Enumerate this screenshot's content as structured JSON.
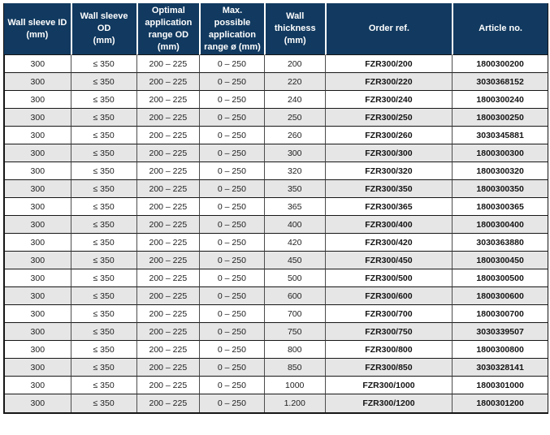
{
  "colors": {
    "header_bg": "#123a60",
    "header_text": "#ffffff",
    "row_bg": "#ffffff",
    "row_alt_bg": "#e6e6e6",
    "cell_text": "#1d1d1d",
    "horizontal_border": "#161616",
    "vertical_border": "#4d4d4d"
  },
  "table": {
    "columns": [
      {
        "id": "wall-sleeve-id",
        "label": "Wall sleeve ID\n(mm)"
      },
      {
        "id": "wall-sleeve-od",
        "label": "Wall sleeve OD\n(mm)"
      },
      {
        "id": "optimal-range-od",
        "label": "Optimal\napplication\nrange OD\n(mm)"
      },
      {
        "id": "max-range",
        "label": "Max. possible\napplication\nrange ø (mm)"
      },
      {
        "id": "wall-thickness",
        "label": "Wall thickness\n(mm)"
      },
      {
        "id": "order-ref",
        "label": "Order ref."
      },
      {
        "id": "article-no",
        "label": "Article no."
      }
    ],
    "column_widths_pct": [
      12.2,
      12.1,
      11.6,
      11.9,
      11.2,
      23.4,
      17.6
    ],
    "rows": [
      [
        "300",
        "≤ 350",
        "200 – 225",
        "0 – 250",
        "200",
        "FZR300/200",
        "1800300200"
      ],
      [
        "300",
        "≤ 350",
        "200 – 225",
        "0 – 250",
        "220",
        "FZR300/220",
        "3030368152"
      ],
      [
        "300",
        "≤ 350",
        "200 – 225",
        "0 – 250",
        "240",
        "FZR300/240",
        "1800300240"
      ],
      [
        "300",
        "≤ 350",
        "200 – 225",
        "0 – 250",
        "250",
        "FZR300/250",
        "1800300250"
      ],
      [
        "300",
        "≤ 350",
        "200 – 225",
        "0 – 250",
        "260",
        "FZR300/260",
        "3030345881"
      ],
      [
        "300",
        "≤ 350",
        "200 – 225",
        "0 – 250",
        "300",
        "FZR300/300",
        "1800300300"
      ],
      [
        "300",
        "≤ 350",
        "200 – 225",
        "0 – 250",
        "320",
        "FZR300/320",
        "1800300320"
      ],
      [
        "300",
        "≤ 350",
        "200 – 225",
        "0 – 250",
        "350",
        "FZR300/350",
        "1800300350"
      ],
      [
        "300",
        "≤ 350",
        "200 – 225",
        "0 – 250",
        "365",
        "FZR300/365",
        "1800300365"
      ],
      [
        "300",
        "≤ 350",
        "200 – 225",
        "0 – 250",
        "400",
        "FZR300/400",
        "1800300400"
      ],
      [
        "300",
        "≤ 350",
        "200 – 225",
        "0 – 250",
        "420",
        "FZR300/420",
        "3030363880"
      ],
      [
        "300",
        "≤ 350",
        "200 – 225",
        "0 – 250",
        "450",
        "FZR300/450",
        "1800300450"
      ],
      [
        "300",
        "≤ 350",
        "200 – 225",
        "0 – 250",
        "500",
        "FZR300/500",
        "1800300500"
      ],
      [
        "300",
        "≤ 350",
        "200 – 225",
        "0 – 250",
        "600",
        "FZR300/600",
        "1800300600"
      ],
      [
        "300",
        "≤ 350",
        "200 – 225",
        "0 – 250",
        "700",
        "FZR300/700",
        "1800300700"
      ],
      [
        "300",
        "≤ 350",
        "200 – 225",
        "0 – 250",
        "750",
        "FZR300/750",
        "3030339507"
      ],
      [
        "300",
        "≤ 350",
        "200 – 225",
        "0 – 250",
        "800",
        "FZR300/800",
        "1800300800"
      ],
      [
        "300",
        "≤ 350",
        "200 – 225",
        "0 – 250",
        "850",
        "FZR300/850",
        "3030328141"
      ],
      [
        "300",
        "≤ 350",
        "200 – 225",
        "0 – 250",
        "1000",
        "FZR300/1000",
        "1800301000"
      ],
      [
        "300",
        "≤ 350",
        "200 – 225",
        "0 – 250",
        "1.200",
        "FZR300/1200",
        "1800301200"
      ]
    ]
  }
}
